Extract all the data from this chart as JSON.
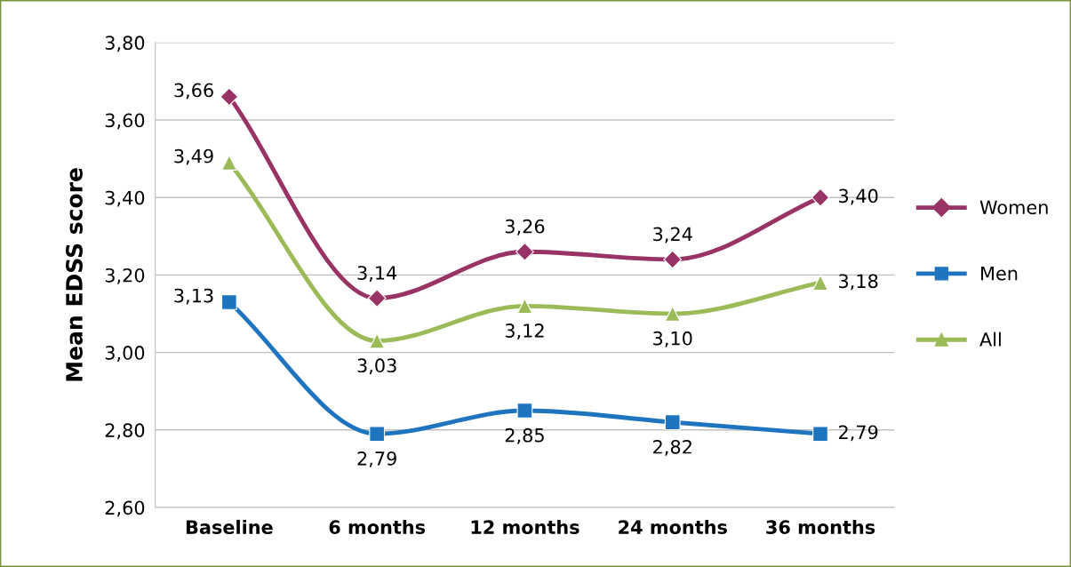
{
  "chart_data": {
    "type": "line",
    "ylabel": "Mean EDSS score",
    "categories": [
      "Baseline",
      "6 months",
      "12 months",
      "24 months",
      "36 months"
    ],
    "series": [
      {
        "name": "Women",
        "color": "#993366",
        "marker": "diamond",
        "values": [
          3.66,
          3.14,
          3.26,
          3.24,
          3.4
        ],
        "value_labels": [
          "3,66",
          "3,14",
          "3,26",
          "3,24",
          "3,40"
        ]
      },
      {
        "name": "Men",
        "color": "#1f74bf",
        "marker": "square",
        "values": [
          3.13,
          2.79,
          2.85,
          2.82,
          2.79
        ],
        "value_labels": [
          "3,13",
          "2,79",
          "2,85",
          "2,82",
          "2,79"
        ]
      },
      {
        "name": "All",
        "color": "#9bbb59",
        "marker": "triangle",
        "values": [
          3.49,
          3.03,
          3.12,
          3.1,
          3.18
        ],
        "value_labels": [
          "3,49",
          "3,03",
          "3,12",
          "3,10",
          "3,18"
        ]
      }
    ],
    "ylim": [
      2.6,
      3.8
    ],
    "yticks": [
      {
        "value": 2.6,
        "label": "2,60"
      },
      {
        "value": 2.8,
        "label": "2,80"
      },
      {
        "value": 3.0,
        "label": "3,00"
      },
      {
        "value": 3.2,
        "label": "3,20"
      },
      {
        "value": 3.4,
        "label": "3,40"
      },
      {
        "value": 3.6,
        "label": "3,60"
      },
      {
        "value": 3.8,
        "label": "3,80"
      }
    ],
    "grid": "y",
    "legend": "right"
  }
}
